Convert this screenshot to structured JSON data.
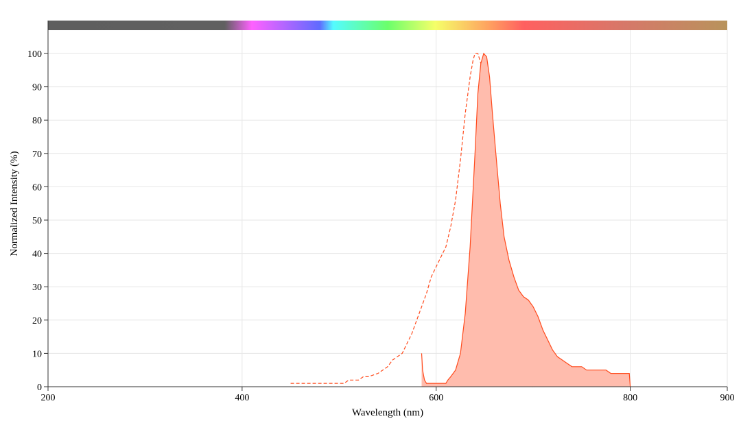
{
  "chart_data": {
    "type": "area",
    "title": "",
    "xlabel": "Wavelength (nm)",
    "ylabel": "Normalized Intensity (%)",
    "xlim": [
      200,
      900
    ],
    "ylim": [
      0,
      100
    ],
    "x_ticks": [
      200,
      400,
      600,
      800,
      900
    ],
    "y_ticks": [
      0,
      10,
      20,
      30,
      40,
      50,
      60,
      70,
      80,
      90,
      100
    ],
    "grid": true,
    "legend": "none",
    "spectrum_bar": true,
    "series": [
      {
        "role": "excitation",
        "style": "dashed-line",
        "color": "#ff4a1c",
        "x": [
          450,
          470,
          490,
          500,
          505,
          510,
          520,
          525,
          530,
          540,
          545,
          550,
          555,
          560,
          565,
          570,
          575,
          580,
          585,
          590,
          595,
          600,
          605,
          610,
          615,
          620,
          625,
          630,
          635,
          638,
          640,
          643,
          646,
          650,
          653,
          656,
          660,
          665,
          670,
          675,
          680,
          685,
          690,
          695,
          700,
          702
        ],
        "y": [
          1,
          1,
          1,
          1,
          1,
          2,
          2,
          3,
          3,
          4,
          5,
          6,
          8,
          9,
          10,
          13,
          16,
          20,
          24,
          28,
          33,
          36,
          39,
          42,
          48,
          56,
          68,
          82,
          93,
          98,
          100,
          100,
          97,
          85,
          65,
          45,
          25,
          12,
          6,
          4,
          2,
          1,
          0.5,
          0.2,
          0,
          0
        ]
      },
      {
        "role": "emission",
        "style": "filled-area",
        "color": "#ff4a1c",
        "fill": "#ffbcad",
        "x": [
          585,
          586,
          588,
          590,
          600,
          610,
          612,
          615,
          620,
          625,
          630,
          635,
          640,
          643,
          646,
          649,
          652,
          655,
          658,
          660,
          663,
          666,
          670,
          675,
          680,
          685,
          690,
          695,
          700,
          705,
          710,
          715,
          720,
          725,
          730,
          735,
          740,
          745,
          750,
          755,
          760,
          765,
          770,
          775,
          780,
          785,
          790,
          795,
          797,
          799,
          800
        ],
        "y": [
          10,
          5,
          2,
          1,
          1,
          1,
          2,
          3,
          5,
          10,
          22,
          42,
          70,
          88,
          97,
          100,
          99,
          93,
          82,
          75,
          65,
          55,
          45,
          38,
          33,
          29,
          27,
          26,
          24,
          21,
          17,
          14,
          11,
          9,
          8,
          7,
          6,
          6,
          6,
          5,
          5,
          5,
          5,
          5,
          4,
          4,
          4,
          4,
          4,
          4,
          0
        ]
      }
    ],
    "spectrum_colors": [
      {
        "stop": 0.0,
        "color": "#5e5e5e"
      },
      {
        "stop": 0.26,
        "color": "#606060"
      },
      {
        "stop": 0.3,
        "color": "#ff61ff"
      },
      {
        "stop": 0.4,
        "color": "#5f6bff"
      },
      {
        "stop": 0.42,
        "color": "#54fbff"
      },
      {
        "stop": 0.5,
        "color": "#6bff6b"
      },
      {
        "stop": 0.57,
        "color": "#f5ff69"
      },
      {
        "stop": 0.65,
        "color": "#ffa060"
      },
      {
        "stop": 0.7,
        "color": "#ff6060"
      },
      {
        "stop": 0.85,
        "color": "#d67869"
      },
      {
        "stop": 1.0,
        "color": "#b8935c"
      }
    ]
  }
}
